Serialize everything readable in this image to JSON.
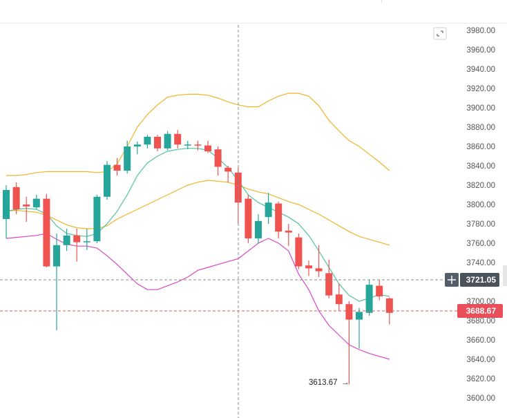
{
  "chart_data": {
    "type": "candlestick",
    "ylim": [
      3590,
      3990
    ],
    "y_ticks": [
      "3980.00",
      "3960.00",
      "3940.00",
      "3920.00",
      "3900.00",
      "3880.00",
      "3860.00",
      "3840.00",
      "3820.00",
      "3800.00",
      "3780.00",
      "3760.00",
      "3740.00",
      "3720.00",
      "3700.00",
      "3680.00",
      "3660.00",
      "3640.00",
      "3620.00",
      "3600.00"
    ],
    "crosshair_price": "3721.05",
    "last_price": "3688.67",
    "min_label": "3613.67",
    "colors": {
      "up": "#26a69a",
      "down": "#ef5350",
      "ma_fast": "#4fc3a1",
      "ma_slow": "#f0b429",
      "bb_upper": "#f0b429",
      "bb_lower": "#d946c8"
    },
    "candles": [
      {
        "o": 3785,
        "h": 3820,
        "l": 3765,
        "c": 3815
      },
      {
        "o": 3818,
        "h": 3823,
        "l": 3790,
        "c": 3795
      },
      {
        "o": 3800,
        "h": 3808,
        "l": 3782,
        "c": 3798
      },
      {
        "o": 3797,
        "h": 3810,
        "l": 3795,
        "c": 3806
      },
      {
        "o": 3806,
        "h": 3811,
        "l": 3735,
        "c": 3736
      },
      {
        "o": 3736,
        "h": 3770,
        "l": 3670,
        "c": 3758
      },
      {
        "o": 3758,
        "h": 3775,
        "l": 3752,
        "c": 3768
      },
      {
        "o": 3768,
        "h": 3775,
        "l": 3741,
        "c": 3761
      },
      {
        "o": 3761,
        "h": 3775,
        "l": 3753,
        "c": 3762
      },
      {
        "o": 3762,
        "h": 3810,
        "l": 3760,
        "c": 3808
      },
      {
        "o": 3808,
        "h": 3845,
        "l": 3805,
        "c": 3841
      },
      {
        "o": 3841,
        "h": 3848,
        "l": 3830,
        "c": 3835
      },
      {
        "o": 3835,
        "h": 3866,
        "l": 3832,
        "c": 3860
      },
      {
        "o": 3860,
        "h": 3865,
        "l": 3852,
        "c": 3862
      },
      {
        "o": 3862,
        "h": 3872,
        "l": 3858,
        "c": 3870
      },
      {
        "o": 3870,
        "h": 3872,
        "l": 3855,
        "c": 3858
      },
      {
        "o": 3858,
        "h": 3876,
        "l": 3856,
        "c": 3873
      },
      {
        "o": 3873,
        "h": 3877,
        "l": 3858,
        "c": 3862
      },
      {
        "o": 3862,
        "h": 3866,
        "l": 3857,
        "c": 3862
      },
      {
        "o": 3862,
        "h": 3866,
        "l": 3856,
        "c": 3861
      },
      {
        "o": 3861,
        "h": 3866,
        "l": 3853,
        "c": 3855
      },
      {
        "o": 3857,
        "h": 3860,
        "l": 3830,
        "c": 3839
      },
      {
        "o": 3838,
        "h": 3840,
        "l": 3823,
        "c": 3834
      },
      {
        "o": 3833,
        "h": 3838,
        "l": 3780,
        "c": 3802
      },
      {
        "o": 3806,
        "h": 3810,
        "l": 3760,
        "c": 3765
      },
      {
        "o": 3765,
        "h": 3790,
        "l": 3760,
        "c": 3783
      },
      {
        "o": 3787,
        "h": 3812,
        "l": 3780,
        "c": 3802
      },
      {
        "o": 3801,
        "h": 3803,
        "l": 3765,
        "c": 3772
      },
      {
        "o": 3773,
        "h": 3780,
        "l": 3757,
        "c": 3771
      },
      {
        "o": 3766,
        "h": 3770,
        "l": 3733,
        "c": 3736
      },
      {
        "o": 3737,
        "h": 3742,
        "l": 3726,
        "c": 3734
      },
      {
        "o": 3734,
        "h": 3758,
        "l": 3725,
        "c": 3731
      },
      {
        "o": 3729,
        "h": 3743,
        "l": 3703,
        "c": 3706
      },
      {
        "o": 3707,
        "h": 3718,
        "l": 3690,
        "c": 3697
      },
      {
        "o": 3697,
        "h": 3700,
        "l": 3614,
        "c": 3681
      },
      {
        "o": 3681,
        "h": 3693,
        "l": 3651,
        "c": 3689
      },
      {
        "o": 3688,
        "h": 3722,
        "l": 3685,
        "c": 3717
      },
      {
        "o": 3716,
        "h": 3722,
        "l": 3701,
        "c": 3705
      },
      {
        "o": 3703,
        "h": 3704,
        "l": 3676,
        "c": 3688
      }
    ],
    "ma_fast": [
      3793,
      3795,
      3796,
      3795,
      3790,
      3778,
      3770,
      3768,
      3767,
      3770,
      3780,
      3793,
      3810,
      3830,
      3843,
      3850,
      3855,
      3857,
      3858,
      3858,
      3856,
      3848,
      3838,
      3825,
      3810,
      3802,
      3797,
      3792,
      3787,
      3780,
      3768,
      3752,
      3735,
      3718,
      3706,
      3700,
      3703,
      3707,
      3705
    ],
    "ma_slow": [
      3793,
      3794,
      3793,
      3792,
      3789,
      3784,
      3779,
      3776,
      3775,
      3775,
      3778,
      3785,
      3790,
      3795,
      3800,
      3805,
      3810,
      3815,
      3820,
      3823,
      3825,
      3824,
      3823,
      3820,
      3816,
      3813,
      3811,
      3807,
      3803,
      3800,
      3795,
      3790,
      3784,
      3778,
      3772,
      3767,
      3764,
      3761,
      3758
    ],
    "bb_upper": [
      3830,
      3830,
      3831,
      3833,
      3834,
      3834,
      3834,
      3834,
      3834,
      3833,
      3834,
      3842,
      3860,
      3880,
      3893,
      3903,
      3911,
      3913,
      3914,
      3914,
      3913,
      3910,
      3906,
      3903,
      3901,
      3901,
      3907,
      3912,
      3915,
      3915,
      3912,
      3902,
      3887,
      3876,
      3866,
      3860,
      3852,
      3844,
      3835
    ],
    "bb_lower": [
      3765,
      3766,
      3767,
      3768,
      3770,
      3764,
      3759,
      3757,
      3757,
      3755,
      3747,
      3738,
      3728,
      3718,
      3712,
      3712,
      3716,
      3720,
      3725,
      3732,
      3735,
      3738,
      3741,
      3744,
      3752,
      3760,
      3765,
      3760,
      3752,
      3728,
      3712,
      3690,
      3675,
      3665,
      3655,
      3650,
      3646,
      3643,
      3640
    ]
  }
}
